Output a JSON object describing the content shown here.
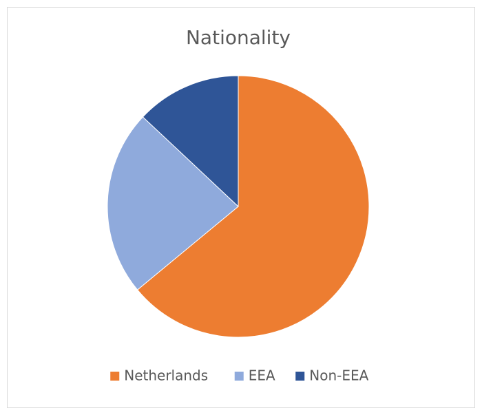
{
  "chart_data": {
    "type": "pie",
    "title": "Nationality",
    "categories": [
      "Netherlands",
      "EEA",
      "Non-EEA"
    ],
    "values": [
      64,
      23,
      13
    ],
    "colors": [
      "#ED7D31",
      "#8FAADC",
      "#2F5597"
    ],
    "legend": "bottom"
  }
}
